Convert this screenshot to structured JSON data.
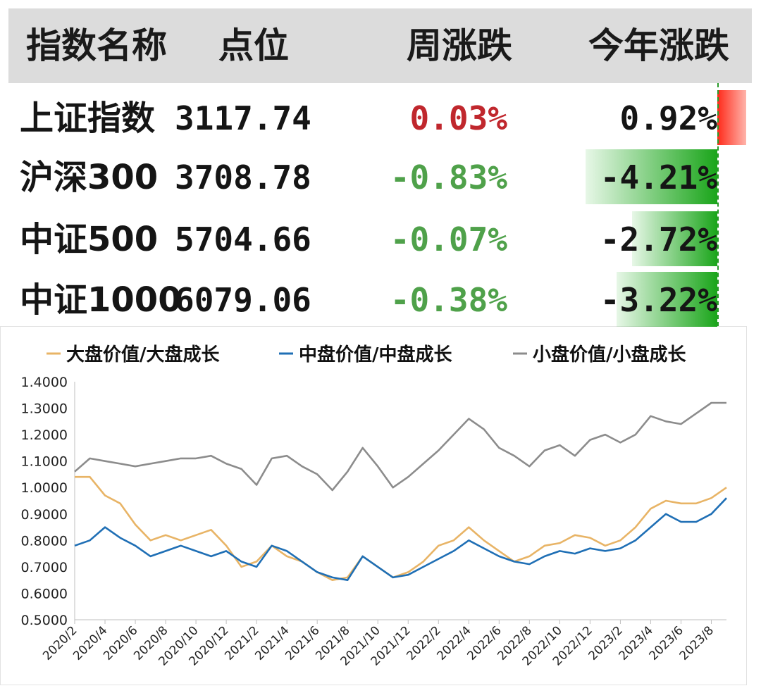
{
  "table": {
    "headers": [
      "指数名称",
      "点位",
      "周涨跌",
      "今年涨跌"
    ],
    "rows": [
      {
        "name": "上证指数",
        "point": "3117.74",
        "week": "0.03%",
        "year": "0.92%",
        "year_value": 0.92
      },
      {
        "name": "沪深300",
        "point": "3708.78",
        "week": "-0.83%",
        "year": "-4.21%",
        "year_value": -4.21
      },
      {
        "name": "中证500",
        "point": "5704.66",
        "week": "-0.07%",
        "year": "-2.72%",
        "year_value": -2.72
      },
      {
        "name": "中证1000",
        "point": "6079.06",
        "week": "-0.38%",
        "year": "-3.22%",
        "year_value": -3.22
      }
    ],
    "colors": {
      "up": "#c0272d",
      "down": "#4fa14a",
      "bar_pos": "#ff2a1a",
      "bar_neg": "#1aa51a"
    }
  },
  "chart_data": {
    "type": "line",
    "title": "",
    "xlabel": "",
    "ylabel": "",
    "legend_position": "top",
    "grid": false,
    "ylim": [
      0.5,
      1.4
    ],
    "yticks": [
      "1.4000",
      "1.3000",
      "1.2000",
      "1.1000",
      "1.0000",
      "0.9000",
      "0.8000",
      "0.7000",
      "0.6000",
      "0.5000"
    ],
    "xticks": [
      "2020/2",
      "2020/4",
      "2020/6",
      "2020/8",
      "2020/10",
      "2020/12",
      "2021/2",
      "2021/4",
      "2021/6",
      "2021/8",
      "2021/10",
      "2021/12",
      "2022/2",
      "2022/4",
      "2022/6",
      "2022/8",
      "2022/10",
      "2022/12",
      "2023/2",
      "2023/4",
      "2023/6",
      "2023/8"
    ],
    "x_range": [
      "2020-02",
      "2023-09"
    ],
    "x": [
      "2020-02",
      "2020-03",
      "2020-04",
      "2020-05",
      "2020-06",
      "2020-07",
      "2020-08",
      "2020-09",
      "2020-10",
      "2020-11",
      "2020-12",
      "2021-01",
      "2021-02",
      "2021-03",
      "2021-04",
      "2021-05",
      "2021-06",
      "2021-07",
      "2021-08",
      "2021-09",
      "2021-10",
      "2021-11",
      "2021-12",
      "2022-01",
      "2022-02",
      "2022-03",
      "2022-04",
      "2022-05",
      "2022-06",
      "2022-07",
      "2022-08",
      "2022-09",
      "2022-10",
      "2022-11",
      "2022-12",
      "2023-01",
      "2023-02",
      "2023-03",
      "2023-04",
      "2023-05",
      "2023-06",
      "2023-07",
      "2023-08",
      "2023-09"
    ],
    "series": [
      {
        "name": "大盘价值/大盘成长",
        "color": "#e8b466",
        "values": [
          1.04,
          1.04,
          0.97,
          0.94,
          0.86,
          0.8,
          0.82,
          0.8,
          0.82,
          0.84,
          0.78,
          0.7,
          0.72,
          0.78,
          0.74,
          0.72,
          0.68,
          0.65,
          0.66,
          0.74,
          0.7,
          0.66,
          0.68,
          0.72,
          0.78,
          0.8,
          0.85,
          0.8,
          0.76,
          0.72,
          0.74,
          0.78,
          0.79,
          0.82,
          0.81,
          0.78,
          0.8,
          0.85,
          0.92,
          0.95,
          0.94,
          0.94,
          0.96,
          1.0
        ]
      },
      {
        "name": "中盘价值/中盘成长",
        "color": "#1f6fb5",
        "values": [
          0.78,
          0.8,
          0.85,
          0.81,
          0.78,
          0.74,
          0.76,
          0.78,
          0.76,
          0.74,
          0.76,
          0.72,
          0.7,
          0.78,
          0.76,
          0.72,
          0.68,
          0.66,
          0.65,
          0.74,
          0.7,
          0.66,
          0.67,
          0.7,
          0.73,
          0.76,
          0.8,
          0.77,
          0.74,
          0.72,
          0.71,
          0.74,
          0.76,
          0.75,
          0.77,
          0.76,
          0.77,
          0.8,
          0.85,
          0.9,
          0.87,
          0.87,
          0.9,
          0.96
        ]
      },
      {
        "name": "小盘价值/小盘成长",
        "color": "#8c8c8c",
        "values": [
          1.06,
          1.11,
          1.1,
          1.09,
          1.08,
          1.09,
          1.1,
          1.11,
          1.11,
          1.12,
          1.09,
          1.07,
          1.01,
          1.11,
          1.12,
          1.08,
          1.05,
          0.99,
          1.06,
          1.15,
          1.08,
          1.0,
          1.04,
          1.09,
          1.14,
          1.2,
          1.26,
          1.22,
          1.15,
          1.12,
          1.08,
          1.14,
          1.16,
          1.12,
          1.18,
          1.2,
          1.17,
          1.2,
          1.27,
          1.25,
          1.24,
          1.28,
          1.32,
          1.32
        ]
      }
    ]
  }
}
